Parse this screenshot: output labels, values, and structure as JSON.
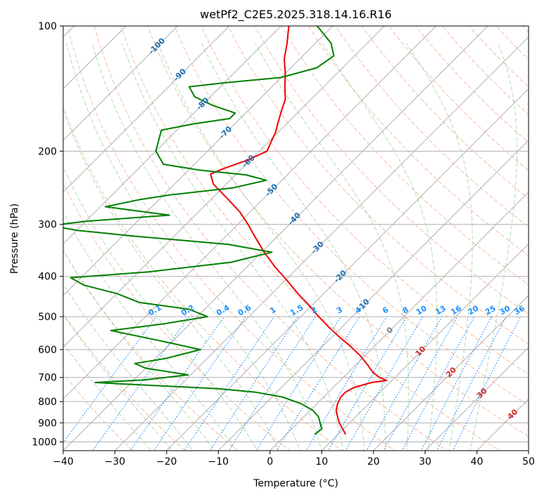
{
  "chart_data": {
    "type": "line",
    "title": "wetPf2_C2E5.2025.318.14.16.R16",
    "xlabel": "Temperature (°C)",
    "ylabel": "Pressure (hPa)",
    "xlim": [
      -40,
      50
    ],
    "ylim": [
      1050,
      100
    ],
    "y_scale": "log",
    "skew": true,
    "grid": true,
    "x_ticks": [
      -40,
      -30,
      -20,
      -10,
      0,
      10,
      20,
      30,
      40,
      50
    ],
    "y_ticks": [
      100,
      200,
      300,
      400,
      500,
      600,
      700,
      800,
      900,
      1000
    ],
    "isotherm_labels": [
      {
        "text": "-100",
        "value": -100
      },
      {
        "text": "-90",
        "value": -90
      },
      {
        "text": "-80",
        "value": -80
      },
      {
        "text": "-70",
        "value": -70
      },
      {
        "text": "-60",
        "value": -60
      },
      {
        "text": "-50",
        "value": -50
      },
      {
        "text": "-40",
        "value": -40
      },
      {
        "text": "-30",
        "value": -30
      },
      {
        "text": "-20",
        "value": -20
      },
      {
        "text": "-10",
        "value": -10
      },
      {
        "text": "0",
        "value": 0
      },
      {
        "text": "10",
        "value": 10
      },
      {
        "text": "20",
        "value": 20
      },
      {
        "text": "30",
        "value": 30
      },
      {
        "text": "40",
        "value": 40
      }
    ],
    "mixing_ratio_labels": [
      "0.1",
      "0.2",
      "0.4",
      "0.6",
      "1",
      "1.5",
      "2",
      "3",
      "4",
      "6",
      "8",
      "10",
      "13",
      "16",
      "20",
      "25",
      "30",
      "36"
    ],
    "mixing_ratio_values": [
      0.1,
      0.2,
      0.4,
      0.6,
      1,
      1.5,
      2,
      3,
      4,
      6,
      8,
      10,
      13,
      16,
      20,
      25,
      30,
      36
    ],
    "colors": {
      "temperature": "#ee0000",
      "dewpoint": "#008000",
      "isotherm_label_blue": "#1f6fb4",
      "isotherm_label_red": "#d62728",
      "isotherm_label_zero": "#808080",
      "mixing_ratio": "#1e90ff",
      "dry_adiabat": "#f4a582",
      "moist_adiabat": "#99cc99"
    },
    "series": [
      {
        "role": "temperature",
        "points": [
          {
            "p": 960,
            "t": 11.5
          },
          {
            "p": 930,
            "t": 9.8
          },
          {
            "p": 900,
            "t": 8.0
          },
          {
            "p": 870,
            "t": 6.5
          },
          {
            "p": 840,
            "t": 5.0
          },
          {
            "p": 810,
            "t": 4.0
          },
          {
            "p": 780,
            "t": 3.3
          },
          {
            "p": 760,
            "t": 3.3
          },
          {
            "p": 740,
            "t": 4.0
          },
          {
            "p": 720,
            "t": 6.5
          },
          {
            "p": 712,
            "t": 9.0
          },
          {
            "p": 700,
            "t": 7.0
          },
          {
            "p": 680,
            "t": 4.7
          },
          {
            "p": 650,
            "t": 2.0
          },
          {
            "p": 620,
            "t": -1.0
          },
          {
            "p": 590,
            "t": -4.5
          },
          {
            "p": 560,
            "t": -8.5
          },
          {
            "p": 530,
            "t": -12.5
          },
          {
            "p": 500,
            "t": -16.5
          },
          {
            "p": 470,
            "t": -20.5
          },
          {
            "p": 440,
            "t": -25.0
          },
          {
            "p": 410,
            "t": -29.5
          },
          {
            "p": 380,
            "t": -34.5
          },
          {
            "p": 350,
            "t": -39.5
          },
          {
            "p": 320,
            "t": -44.5
          },
          {
            "p": 300,
            "t": -48.0
          },
          {
            "p": 280,
            "t": -52.0
          },
          {
            "p": 260,
            "t": -57.0
          },
          {
            "p": 240,
            "t": -62.5
          },
          {
            "p": 227,
            "t": -65.0
          },
          {
            "p": 220,
            "t": -63.5
          },
          {
            "p": 210,
            "t": -60.5
          },
          {
            "p": 200,
            "t": -58.5
          },
          {
            "p": 190,
            "t": -59.5
          },
          {
            "p": 180,
            "t": -60.5
          },
          {
            "p": 170,
            "t": -62.0
          },
          {
            "p": 160,
            "t": -63.5
          },
          {
            "p": 150,
            "t": -65.0
          },
          {
            "p": 140,
            "t": -67.5
          },
          {
            "p": 130,
            "t": -70.0
          },
          {
            "p": 120,
            "t": -73.0
          },
          {
            "p": 110,
            "t": -75.5
          },
          {
            "p": 100,
            "t": -78.5
          }
        ]
      },
      {
        "role": "dewpoint",
        "points": [
          {
            "p": 960,
            "t": 5.5
          },
          {
            "p": 930,
            "t": 5.8
          },
          {
            "p": 900,
            "t": 4.3
          },
          {
            "p": 870,
            "t": 2.8
          },
          {
            "p": 840,
            "t": 0.5
          },
          {
            "p": 810,
            "t": -3.0
          },
          {
            "p": 780,
            "t": -8.0
          },
          {
            "p": 760,
            "t": -14.0
          },
          {
            "p": 745,
            "t": -22.0
          },
          {
            "p": 735,
            "t": -32.0
          },
          {
            "p": 725,
            "t": -42.0
          },
          {
            "p": 720,
            "t": -47.0
          },
          {
            "p": 710,
            "t": -38.0
          },
          {
            "p": 690,
            "t": -30.5
          },
          {
            "p": 665,
            "t": -40.0
          },
          {
            "p": 648,
            "t": -43.0
          },
          {
            "p": 630,
            "t": -38.0
          },
          {
            "p": 600,
            "t": -33.0
          },
          {
            "p": 570,
            "t": -43.0
          },
          {
            "p": 540,
            "t": -54.0
          },
          {
            "p": 520,
            "t": -45.0
          },
          {
            "p": 500,
            "t": -38.0
          },
          {
            "p": 480,
            "t": -43.0
          },
          {
            "p": 462,
            "t": -54.0
          },
          {
            "p": 440,
            "t": -60.0
          },
          {
            "p": 420,
            "t": -68.0
          },
          {
            "p": 403,
            "t": -72.0
          },
          {
            "p": 390,
            "t": -58.0
          },
          {
            "p": 370,
            "t": -44.0
          },
          {
            "p": 350,
            "t": -38.0
          },
          {
            "p": 335,
            "t": -48.0
          },
          {
            "p": 320,
            "t": -68.0
          },
          {
            "p": 310,
            "t": -80.0
          },
          {
            "p": 302,
            "t": -86.0
          },
          {
            "p": 295,
            "t": -80.0
          },
          {
            "p": 285,
            "t": -65.0
          },
          {
            "p": 272,
            "t": -79.0
          },
          {
            "p": 262,
            "t": -74.0
          },
          {
            "p": 255,
            "t": -69.0
          },
          {
            "p": 245,
            "t": -58.0
          },
          {
            "p": 235,
            "t": -53.0
          },
          {
            "p": 228,
            "t": -58.0
          },
          {
            "p": 222,
            "t": -68.0
          },
          {
            "p": 215,
            "t": -76.0
          },
          {
            "p": 200,
            "t": -80.0
          },
          {
            "p": 185,
            "t": -82.0
          },
          {
            "p": 178,
            "t": -83.0
          },
          {
            "p": 172,
            "t": -78.0
          },
          {
            "p": 167,
            "t": -72.0
          },
          {
            "p": 162,
            "t": -72.0
          },
          {
            "p": 155,
            "t": -78.0
          },
          {
            "p": 148,
            "t": -83.0
          },
          {
            "p": 140,
            "t": -86.0
          },
          {
            "p": 137,
            "t": -80.0
          },
          {
            "p": 133,
            "t": -70.0
          },
          {
            "p": 126,
            "t": -65.0
          },
          {
            "p": 118,
            "t": -64.0
          },
          {
            "p": 110,
            "t": -67.0
          },
          {
            "p": 100,
            "t": -73.0
          }
        ]
      }
    ]
  }
}
